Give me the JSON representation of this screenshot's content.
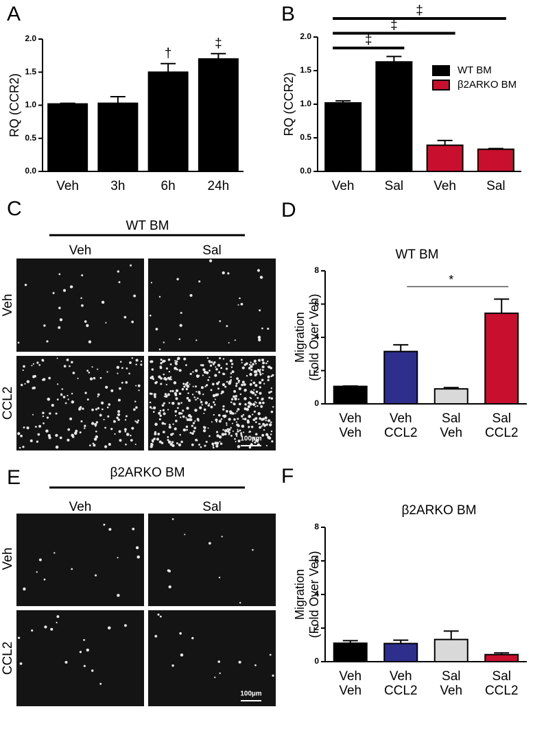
{
  "chart_data": [
    {
      "type": "bar",
      "panel": "A",
      "ylabel": "RQ (CCR2)",
      "categories": [
        "Veh",
        "3h",
        "6h",
        "24h"
      ],
      "values": [
        1.02,
        1.03,
        1.5,
        1.7
      ],
      "errors": [
        0.01,
        0.1,
        0.13,
        0.08
      ],
      "annotations": [
        null,
        null,
        "†",
        "‡"
      ],
      "color": "#000000",
      "ylim": [
        0,
        2.0
      ],
      "yticks": [
        {
          "value": 0,
          "label": "0.0"
        },
        {
          "value": 0.5,
          "label": "0.5"
        },
        {
          "value": 1,
          "label": "1.0"
        },
        {
          "value": 1.5,
          "label": "1.5"
        },
        {
          "value": 2,
          "label": "2.0"
        }
      ]
    },
    {
      "type": "bar",
      "panel": "B",
      "ylabel": "RQ (CCR2)",
      "categories": [
        "Veh",
        "Sal",
        "Veh",
        "Sal"
      ],
      "series": [
        {
          "name": "WT BM",
          "color": "#000000",
          "values": [
            1.02,
            1.63,
            null,
            null
          ],
          "errors": [
            0.03,
            0.08,
            null,
            null
          ]
        },
        {
          "name": "β2ARKO BM",
          "color": "#c8102e",
          "values": [
            null,
            null,
            0.39,
            0.33
          ],
          "errors": [
            null,
            null,
            0.07,
            0.01
          ]
        }
      ],
      "brackets": [
        {
          "from": 0,
          "to": 1,
          "label": "‡"
        },
        {
          "from": 0,
          "to": 2,
          "label": "‡"
        },
        {
          "from": 0,
          "to": 3,
          "label": "‡"
        }
      ],
      "ylim": [
        0,
        2.0
      ],
      "yticks": [
        {
          "value": 0,
          "label": "0.0"
        },
        {
          "value": 0.5,
          "label": "0.5"
        },
        {
          "value": 1,
          "label": "1.0"
        },
        {
          "value": 1.5,
          "label": "1.5"
        },
        {
          "value": 2,
          "label": "2.0"
        }
      ]
    },
    {
      "type": "bar",
      "panel": "D",
      "title": "WT BM",
      "ylabel": [
        "Migration",
        "(Fold Over Veh)"
      ],
      "categories": [
        [
          "Veh",
          "Veh"
        ],
        [
          "Veh",
          "CCL2"
        ],
        [
          "Sal",
          "Veh"
        ],
        [
          "Sal",
          "CCL2"
        ]
      ],
      "values": [
        1.05,
        3.15,
        0.9,
        5.45
      ],
      "errors": [
        0.02,
        0.4,
        0.08,
        0.85
      ],
      "colors": [
        "#000000",
        "#2e2e8c",
        "#d9d9d9",
        "#c8102e"
      ],
      "brackets": [
        {
          "from": 1,
          "to": 3,
          "label": "*"
        }
      ],
      "ylim": [
        0,
        8
      ],
      "yticks": [
        0,
        2,
        4,
        6,
        8
      ]
    },
    {
      "type": "bar",
      "panel": "F",
      "title": "β2ARKO BM",
      "ylabel": [
        "Migration",
        "(Fold Over Veh)"
      ],
      "categories": [
        [
          "Veh",
          "Veh"
        ],
        [
          "Veh",
          "CCL2"
        ],
        [
          "Sal",
          "Veh"
        ],
        [
          "Sal",
          "CCL2"
        ]
      ],
      "values": [
        1.1,
        1.08,
        1.32,
        0.42
      ],
      "errors": [
        0.15,
        0.2,
        0.5,
        0.1
      ],
      "colors": [
        "#000000",
        "#2e2e8c",
        "#d9d9d9",
        "#c8102e"
      ],
      "ylim": [
        0,
        8
      ],
      "yticks": [
        0,
        2,
        4,
        6,
        8
      ]
    }
  ],
  "micrographs": [
    {
      "panel": "C",
      "group": "WT BM",
      "columns": [
        "Veh",
        "Sal"
      ],
      "rows": [
        "Veh",
        "CCL2"
      ],
      "scale_bar": "100µm"
    },
    {
      "panel": "E",
      "group": "β2ARKO BM",
      "columns": [
        "Veh",
        "Sal"
      ],
      "rows": [
        "Veh",
        "CCL2"
      ],
      "scale_bar": "100µm"
    }
  ]
}
